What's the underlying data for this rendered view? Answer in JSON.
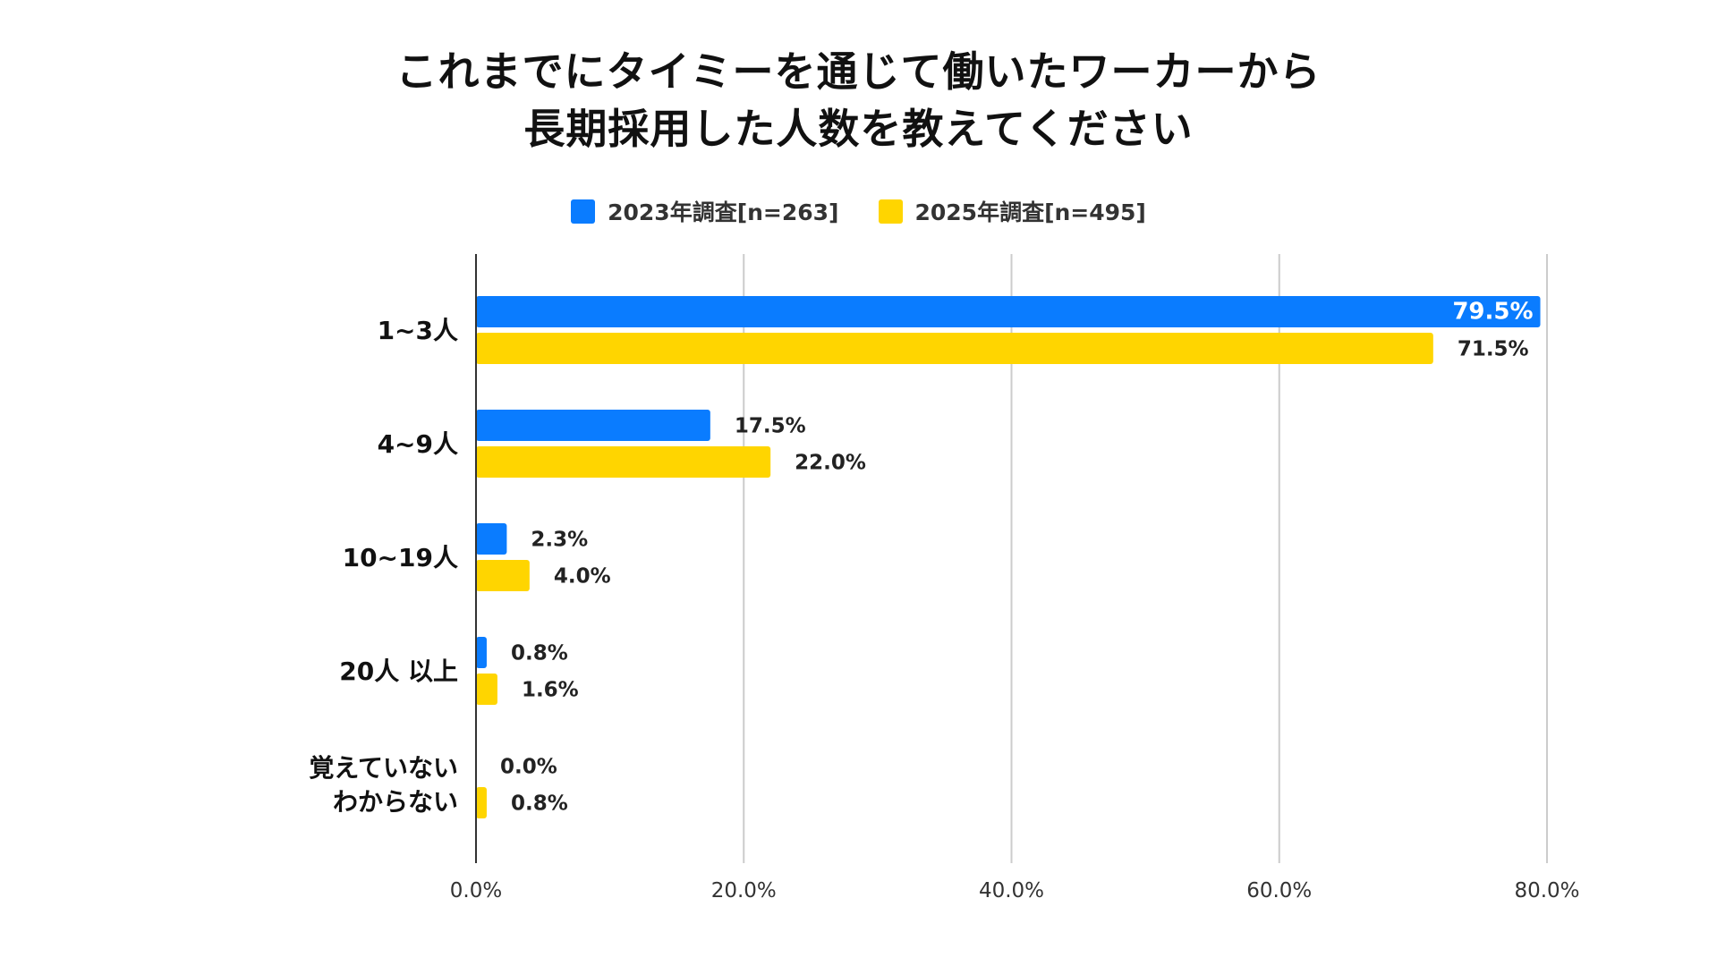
{
  "chart_data": {
    "type": "bar",
    "orientation": "horizontal",
    "title_lines": [
      "これまでにタイミーを通じて働いたワーカーから",
      "長期採用した人数を教えてください"
    ],
    "categories": [
      [
        "1~3人"
      ],
      [
        "4~9人"
      ],
      [
        "10~19人"
      ],
      [
        "20人 以上"
      ],
      [
        "覚えていない",
        "わからない"
      ]
    ],
    "series": [
      {
        "name": "2023年調査[n=263]",
        "color": "#0A7CFF",
        "values": [
          79.5,
          17.5,
          2.3,
          0.8,
          0.0
        ],
        "labels": [
          "79.5%",
          "17.5%",
          "2.3%",
          "0.8%",
          "0.0%"
        ]
      },
      {
        "name": "2025年調査[n=495]",
        "color": "#FFD500",
        "values": [
          71.5,
          22.0,
          4.0,
          1.6,
          0.8
        ],
        "labels": [
          "71.5%",
          "22.0%",
          "4.0%",
          "1.6%",
          "0.8%"
        ]
      }
    ],
    "xlim": [
      0,
      80
    ],
    "ticks": [
      0,
      20,
      40,
      60,
      80
    ],
    "tick_labels": [
      "0.0%",
      "20.0%",
      "40.0%",
      "60.0%",
      "80.0%"
    ],
    "grid": true,
    "legend_position": "top"
  }
}
